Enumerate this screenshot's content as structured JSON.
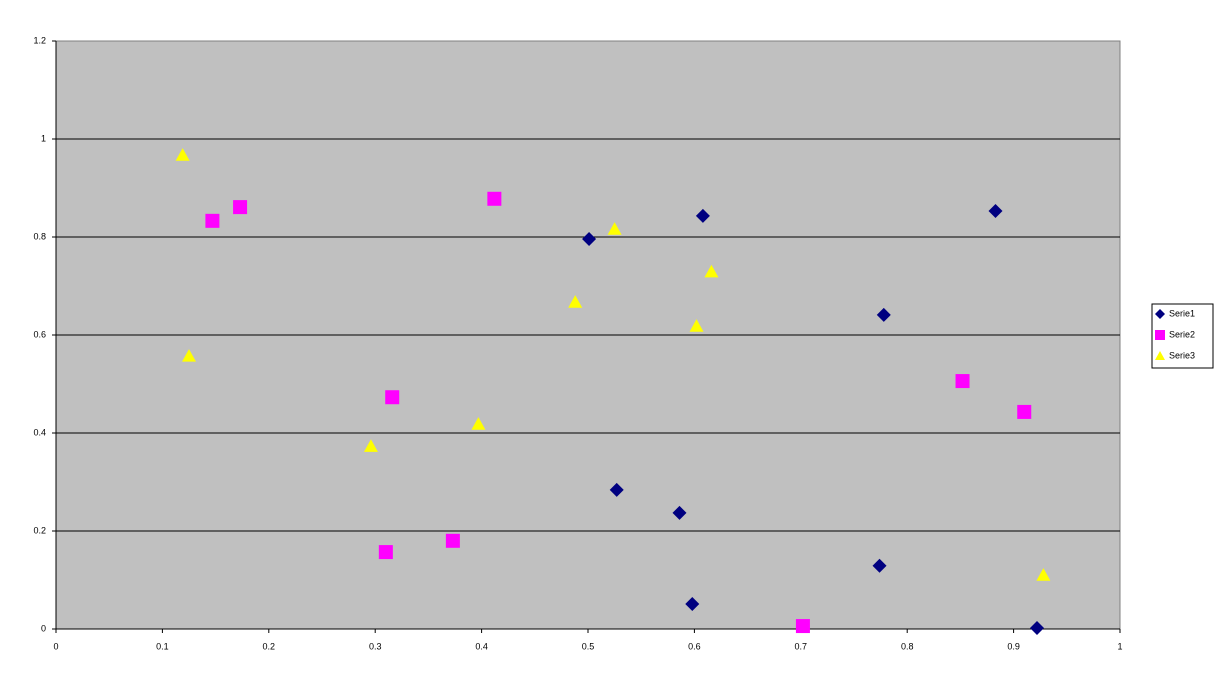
{
  "chart_data": {
    "type": "scatter",
    "xlim": [
      0,
      1
    ],
    "xticks": [
      0,
      0.1,
      0.2,
      0.3,
      0.4,
      0.5,
      0.6,
      0.7,
      0.8,
      0.9,
      1
    ],
    "ylim": [
      0,
      1.2
    ],
    "yticks": [
      0,
      0.2,
      0.4,
      0.6,
      0.8,
      1,
      1.2
    ],
    "grid": true,
    "legend": "right",
    "background": "#c0c0c0",
    "series": [
      {
        "name": "Serie1",
        "color": "#000080",
        "marker": "diamond",
        "x": [
          0.501,
          0.608,
          0.883,
          0.778,
          0.527,
          0.586,
          0.598,
          0.774,
          0.922
        ],
        "values": [
          0.796,
          0.843,
          0.853,
          0.641,
          0.284,
          0.237,
          0.051,
          0.129,
          0.002
        ]
      },
      {
        "name": "Serie2",
        "color": "#ff00ff",
        "marker": "square",
        "x": [
          0.147,
          0.173,
          0.412,
          0.316,
          0.31,
          0.373,
          0.702,
          0.852,
          0.91
        ],
        "values": [
          0.833,
          0.861,
          0.878,
          0.473,
          0.157,
          0.18,
          0.006,
          0.506,
          0.443
        ]
      },
      {
        "name": "Serie3",
        "color": "#ffff00",
        "marker": "triangle",
        "x": [
          0.119,
          0.125,
          0.296,
          0.397,
          0.488,
          0.525,
          0.616,
          0.602,
          0.928
        ],
        "values": [
          0.967,
          0.557,
          0.373,
          0.418,
          0.667,
          0.816,
          0.729,
          0.618,
          0.11
        ]
      }
    ]
  }
}
